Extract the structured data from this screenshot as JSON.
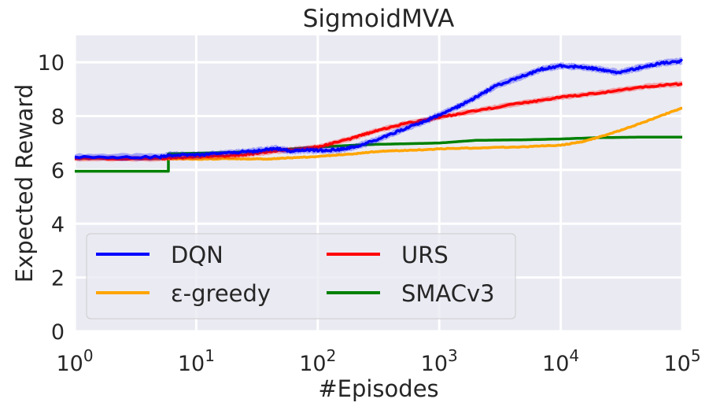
{
  "chart_data": {
    "type": "line",
    "title": "SigmoidMVA",
    "xlabel": "#Episodes",
    "ylabel": "Expected Reward",
    "x_scale": "log",
    "x_ticks": [
      1,
      10,
      100,
      1000,
      10000,
      100000
    ],
    "x_tick_labels": [
      "10^0",
      "10^1",
      "10^2",
      "10^3",
      "10^4",
      "10^5"
    ],
    "y_ticks": [
      0,
      2,
      4,
      6,
      8,
      10
    ],
    "y_tick_labels": [
      "0",
      "2",
      "4",
      "6",
      "8",
      "10"
    ],
    "xlim": [
      1,
      100000
    ],
    "ylim": [
      0,
      11
    ],
    "grid": true,
    "legend": {
      "placement": "lower-left",
      "columns": 2
    },
    "series": [
      {
        "name": "DQN",
        "color": "#0000ff",
        "band": 0.15,
        "points": [
          [
            1,
            6.48
          ],
          [
            5,
            6.48
          ],
          [
            6,
            6.55
          ],
          [
            10,
            6.55
          ],
          [
            20,
            6.65
          ],
          [
            30,
            6.7
          ],
          [
            45,
            6.8
          ],
          [
            60,
            6.7
          ],
          [
            80,
            6.75
          ],
          [
            100,
            6.72
          ],
          [
            150,
            6.75
          ],
          [
            200,
            6.85
          ],
          [
            300,
            7.1
          ],
          [
            500,
            7.5
          ],
          [
            800,
            7.85
          ],
          [
            1000,
            8.05
          ],
          [
            1500,
            8.4
          ],
          [
            2000,
            8.7
          ],
          [
            3000,
            9.15
          ],
          [
            5000,
            9.5
          ],
          [
            7000,
            9.75
          ],
          [
            10000,
            9.87
          ],
          [
            15000,
            9.82
          ],
          [
            20000,
            9.75
          ],
          [
            30000,
            9.62
          ],
          [
            50000,
            9.85
          ],
          [
            70000,
            9.98
          ],
          [
            100000,
            10.05
          ]
        ]
      },
      {
        "name": "ε-greedy",
        "color": "#ffa500",
        "band": 0.06,
        "points": [
          [
            1,
            6.42
          ],
          [
            5,
            6.42
          ],
          [
            6,
            6.42
          ],
          [
            10,
            6.4
          ],
          [
            20,
            6.42
          ],
          [
            40,
            6.4
          ],
          [
            60,
            6.45
          ],
          [
            100,
            6.5
          ],
          [
            200,
            6.6
          ],
          [
            300,
            6.68
          ],
          [
            500,
            6.72
          ],
          [
            1000,
            6.78
          ],
          [
            2000,
            6.82
          ],
          [
            5000,
            6.86
          ],
          [
            10000,
            6.92
          ],
          [
            15000,
            7.05
          ],
          [
            20000,
            7.2
          ],
          [
            30000,
            7.45
          ],
          [
            50000,
            7.8
          ],
          [
            70000,
            8.05
          ],
          [
            100000,
            8.3
          ]
        ]
      },
      {
        "name": "URS",
        "color": "#ff0000",
        "band": 0.12,
        "points": [
          [
            1,
            6.42
          ],
          [
            5,
            6.42
          ],
          [
            6,
            6.45
          ],
          [
            10,
            6.48
          ],
          [
            20,
            6.52
          ],
          [
            30,
            6.6
          ],
          [
            50,
            6.72
          ],
          [
            80,
            6.8
          ],
          [
            100,
            6.85
          ],
          [
            200,
            7.2
          ],
          [
            300,
            7.45
          ],
          [
            500,
            7.7
          ],
          [
            1000,
            7.95
          ],
          [
            2000,
            8.2
          ],
          [
            5000,
            8.5
          ],
          [
            10000,
            8.7
          ],
          [
            20000,
            8.85
          ],
          [
            50000,
            9.1
          ],
          [
            100000,
            9.2
          ]
        ]
      },
      {
        "name": "SMACv3",
        "color": "#008000",
        "band": 0.0,
        "points": [
          [
            1,
            5.95
          ],
          [
            5.9,
            5.95
          ],
          [
            5.9,
            6.6
          ],
          [
            10,
            6.62
          ],
          [
            20,
            6.65
          ],
          [
            50,
            6.75
          ],
          [
            100,
            6.85
          ],
          [
            200,
            6.92
          ],
          [
            300,
            6.95
          ],
          [
            500,
            6.97
          ],
          [
            1000,
            7.0
          ],
          [
            2000,
            7.1
          ],
          [
            5000,
            7.12
          ],
          [
            10000,
            7.15
          ],
          [
            20000,
            7.2
          ],
          [
            50000,
            7.22
          ],
          [
            100000,
            7.22
          ]
        ]
      }
    ]
  }
}
